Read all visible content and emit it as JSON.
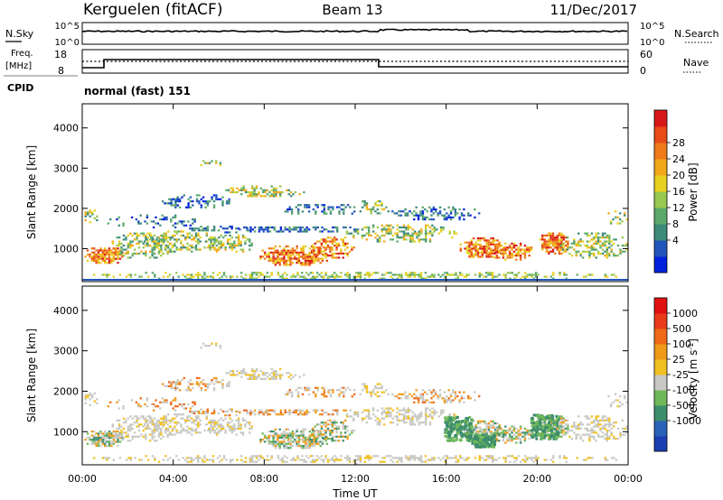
{
  "header": {
    "radar": "Kerguelen (fitACF)",
    "beam": "Beam 13",
    "date": "11/Dec/2017"
  },
  "strips": {
    "nsky_label": "N.Sky",
    "nsearch_label": "N.Search",
    "noise_ticks": [
      "10^5",
      "10^0"
    ],
    "freq_label_1": "Freq.",
    "freq_label_2": "[MHz]",
    "freq_ticks": [
      "18",
      "8"
    ],
    "nave_label": "Nave",
    "nave_ticks": [
      "60",
      "0"
    ],
    "cpid_label": "CPID",
    "cpid_value": "normal (fast) 151"
  },
  "chart_data": [
    {
      "type": "heatmap",
      "title": "Power",
      "ylabel": "Slant Range [km]",
      "xlabel": "Time UT",
      "x_ticks": [
        "00:00",
        "04:00",
        "08:00",
        "12:00",
        "16:00",
        "20:00",
        "00:00"
      ],
      "y_ticks": [
        1000,
        2000,
        3000,
        4000
      ],
      "ylim": [
        180,
        4600
      ],
      "xlim_hours": [
        0,
        24
      ],
      "colorbar": {
        "label": "Power [dB]",
        "ticks": [
          "28",
          "24",
          "20",
          "16",
          "12",
          "8",
          "4"
        ],
        "colors": [
          "#0022dd",
          "#2255bb",
          "#3d8a7a",
          "#5aa86a",
          "#98c850",
          "#e8d020",
          "#f0a818",
          "#ee7a1a",
          "#e84a18",
          "#d81818"
        ]
      }
    },
    {
      "type": "heatmap",
      "title": "Velocity",
      "ylabel": "Slant Range [km]",
      "xlabel": "Time UT",
      "x_ticks": [
        "00:00",
        "04:00",
        "08:00",
        "12:00",
        "16:00",
        "20:00",
        "00:00"
      ],
      "y_ticks": [
        1000,
        2000,
        3000,
        4000
      ],
      "ylim": [
        180,
        4600
      ],
      "xlim_hours": [
        0,
        24
      ],
      "colorbar": {
        "label": "Velocity [m s^-1]",
        "ticks": [
          "1000",
          "500",
          "100",
          "25",
          "-25",
          "-100",
          "-500",
          "-1000"
        ],
        "colors": [
          "#1a3fb0",
          "#2a62b8",
          "#3c8d6c",
          "#6fb85a",
          "#c8c8c4",
          "#f0c020",
          "#f09a18",
          "#ee6a18",
          "#e83a18",
          "#e01010"
        ]
      }
    }
  ],
  "time_axis_label": "Time UT"
}
